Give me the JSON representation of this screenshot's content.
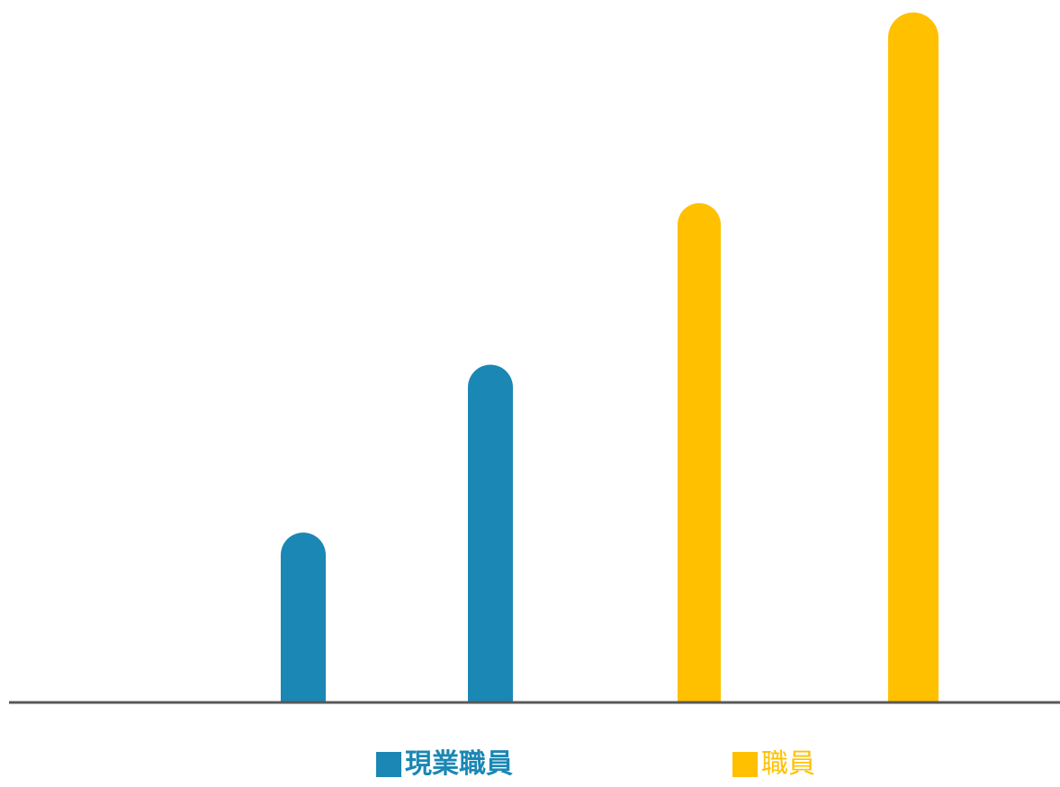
{
  "chart_data": {
    "type": "bar",
    "categories": [
      "",
      "",
      "",
      ""
    ],
    "series": [
      {
        "name": "■現業職員",
        "color": "#1b87b4",
        "values": [
          24.5,
          48.7,
          null,
          null
        ]
      },
      {
        "name": "■職員",
        "color": "#ffc000",
        "values": [
          null,
          null,
          72.0,
          99.5
        ]
      }
    ],
    "title": "",
    "xlabel": "",
    "ylabel": "",
    "ylim": [
      0,
      100
    ],
    "grid": false,
    "legend": "bottom",
    "axis_color": "#595959"
  },
  "legend": {
    "item1_label": "現業職員",
    "item2_label": "職員"
  }
}
